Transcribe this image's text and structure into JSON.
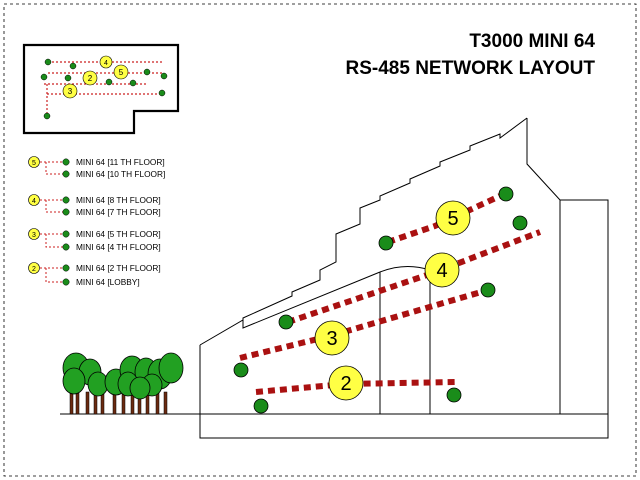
{
  "title_line1": "T3000 MINI 64",
  "title_line2": "RS-485 NETWORK LAYOUT",
  "colors": {
    "node_fill": "#1a8c1a",
    "badge_fill": "#ffff44",
    "network_line": "#aa1111",
    "tree_fill": "#22a022"
  },
  "minimap_badges": [
    "4",
    "5",
    "2",
    "3"
  ],
  "legend": [
    {
      "badge": "5",
      "items": [
        "MINI 64 [11 TH FLOOR]",
        "MINI 64 [10 TH FLOOR]"
      ]
    },
    {
      "badge": "4",
      "items": [
        "MINI 64 [8 TH FLOOR]",
        "MINI 64 [7 TH FLOOR]"
      ]
    },
    {
      "badge": "3",
      "items": [
        "MINI 64 [5 TH FLOOR]",
        "MINI 64 [4 TH FLOOR]"
      ]
    },
    {
      "badge": "2",
      "items": [
        "MINI 64 [2 TH FLOOR]",
        "MINI 64 [LOBBY]"
      ]
    }
  ],
  "building_badges": [
    "5",
    "4",
    "3",
    "2"
  ]
}
